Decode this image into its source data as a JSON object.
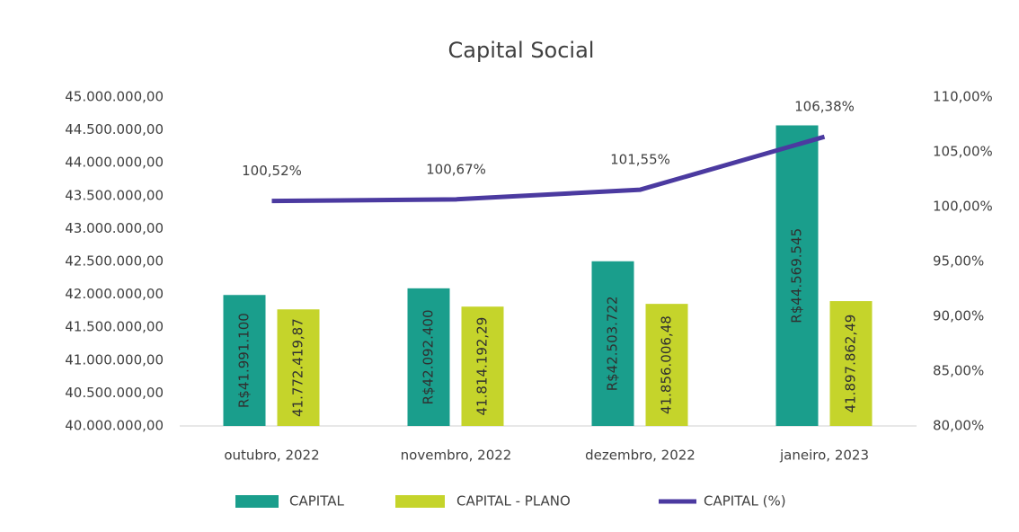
{
  "chart_data": {
    "type": "bar",
    "title": "Capital Social",
    "categories": [
      "outubro, 2022",
      "novembro, 2022",
      "dezembro, 2022",
      "janeiro, 2023"
    ],
    "series": [
      {
        "name": "CAPITAL",
        "color": "#1a9e8c",
        "values": [
          41991100,
          42092400,
          42503722,
          44569545
        ],
        "value_labels": [
          "R$41.991.100",
          "R$42.092.400",
          "R$42.503.722",
          "R$44.569.545"
        ]
      },
      {
        "name": "CAPITAL - PLANO",
        "color": "#c5d42b",
        "values": [
          41772419.87,
          41814192.29,
          41856006.48,
          41897862.49
        ],
        "value_labels": [
          "41.772.419,87",
          "41.814.192,29",
          "41.856.006,48",
          "41.897.862,49"
        ]
      },
      {
        "name": "CAPITAL (%)",
        "type": "line",
        "axis": "y2",
        "color": "#4b3aa0",
        "values": [
          100.52,
          100.67,
          101.55,
          106.38
        ],
        "value_labels": [
          "100,52%",
          "100,67%",
          "101,55%",
          "106,38%"
        ]
      }
    ],
    "ylim": [
      40000000,
      45000000
    ],
    "yticks": [
      {
        "value": 40000000,
        "label": "40.000.000,00"
      },
      {
        "value": 40500000,
        "label": "40.500.000,00"
      },
      {
        "value": 41000000,
        "label": "41.000.000,00"
      },
      {
        "value": 41500000,
        "label": "41.500.000,00"
      },
      {
        "value": 42000000,
        "label": "42.000.000,00"
      },
      {
        "value": 42500000,
        "label": "42.500.000,00"
      },
      {
        "value": 43000000,
        "label": "43.000.000,00"
      },
      {
        "value": 43500000,
        "label": "43.500.000,00"
      },
      {
        "value": 44000000,
        "label": "44.000.000,00"
      },
      {
        "value": 44500000,
        "label": "44.500.000,00"
      },
      {
        "value": 45000000,
        "label": "45.000.000,00"
      }
    ],
    "y2lim": [
      80,
      110
    ],
    "y2ticks": [
      {
        "value": 80,
        "label": "80,00%"
      },
      {
        "value": 85,
        "label": "85,00%"
      },
      {
        "value": 90,
        "label": "90,00%"
      },
      {
        "value": 95,
        "label": "95,00%"
      },
      {
        "value": 100,
        "label": "100,00%"
      },
      {
        "value": 105,
        "label": "105,00%"
      },
      {
        "value": 110,
        "label": "110,00%"
      }
    ],
    "legend": "bottom"
  }
}
